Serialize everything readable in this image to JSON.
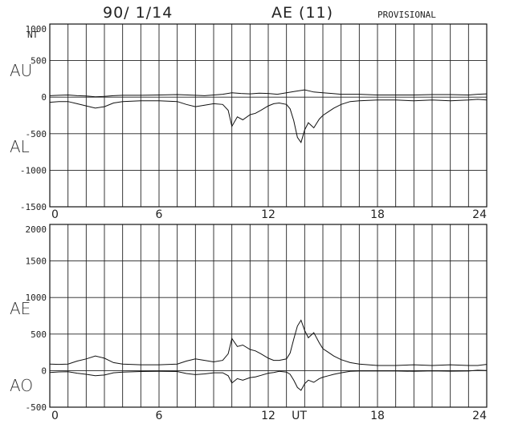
{
  "header": {
    "date": "90/ 1/14",
    "index": "AE (11)",
    "status": "PROVISIONAL"
  },
  "chart_data": [
    {
      "type": "line",
      "name": "upper-panel",
      "unit": "NT",
      "ylim": [
        -1500,
        1000
      ],
      "yticks": [
        1000,
        500,
        0,
        -500,
        -1000,
        -1500
      ],
      "ytick_labels": [
        "1000",
        "500",
        "0",
        "-500",
        "-1000",
        "-1500"
      ],
      "xlim": [
        0,
        24
      ],
      "xtick_labels": [
        {
          "x": 0,
          "label": "0"
        },
        {
          "x": 6,
          "label": "6"
        },
        {
          "x": 12,
          "label": "12"
        },
        {
          "x": 18,
          "label": "18"
        },
        {
          "x": 24,
          "label": "24"
        }
      ],
      "grid": "hourly",
      "series_labels": [
        "AU",
        "AL"
      ],
      "series": [
        {
          "name": "AU",
          "x": [
            0,
            0.5,
            1,
            1.5,
            2,
            2.5,
            3,
            3.5,
            4,
            5,
            6,
            7,
            8,
            8.5,
            9,
            9.5,
            10,
            10.5,
            11,
            11.5,
            12,
            12.5,
            13,
            13.5,
            14,
            14.5,
            15,
            15.5,
            16,
            17,
            18,
            19,
            20,
            21,
            22,
            23,
            23.5,
            24
          ],
          "y": [
            20,
            25,
            30,
            20,
            15,
            5,
            10,
            20,
            25,
            25,
            30,
            35,
            25,
            20,
            30,
            40,
            60,
            50,
            45,
            55,
            50,
            40,
            60,
            80,
            100,
            70,
            60,
            50,
            40,
            40,
            30,
            30,
            30,
            35,
            35,
            30,
            40,
            45
          ]
        },
        {
          "name": "AL",
          "x": [
            0,
            0.5,
            1,
            1.5,
            2,
            2.5,
            3,
            3.5,
            4,
            5,
            6,
            7,
            7.5,
            8,
            8.5,
            9,
            9.5,
            9.8,
            10,
            10.3,
            10.6,
            11,
            11.3,
            11.6,
            12,
            12.3,
            12.6,
            13,
            13.2,
            13.4,
            13.6,
            13.8,
            14,
            14.2,
            14.5,
            14.8,
            15,
            15.3,
            15.6,
            16,
            16.5,
            17,
            18,
            19,
            20,
            21,
            22,
            23,
            23.5,
            24
          ],
          "y": [
            -70,
            -60,
            -60,
            -90,
            -120,
            -150,
            -130,
            -80,
            -60,
            -50,
            -50,
            -60,
            -100,
            -130,
            -110,
            -90,
            -100,
            -180,
            -400,
            -270,
            -310,
            -240,
            -220,
            -180,
            -120,
            -90,
            -80,
            -100,
            -160,
            -320,
            -550,
            -620,
            -450,
            -350,
            -420,
            -300,
            -250,
            -200,
            -150,
            -100,
            -60,
            -50,
            -40,
            -40,
            -50,
            -40,
            -50,
            -40,
            -30,
            -40
          ]
        }
      ]
    },
    {
      "type": "line",
      "name": "lower-panel",
      "ylim": [
        -500,
        2000
      ],
      "yticks": [
        2000,
        1500,
        1000,
        500,
        0,
        -500
      ],
      "ytick_labels": [
        "2000",
        "1500",
        "1000",
        "500",
        "0",
        "-500"
      ],
      "xlim": [
        0,
        24
      ],
      "xtick_labels": [
        {
          "x": 0,
          "label": "0"
        },
        {
          "x": 6,
          "label": "6"
        },
        {
          "x": 12,
          "label": "12"
        },
        {
          "x": 13.7,
          "label": "UT"
        },
        {
          "x": 18,
          "label": "18"
        },
        {
          "x": 24,
          "label": "24"
        }
      ],
      "grid": "hourly",
      "series_labels": [
        "AE",
        "AO"
      ],
      "series": [
        {
          "name": "AE",
          "x": [
            0,
            0.5,
            1,
            1.5,
            2,
            2.5,
            3,
            3.5,
            4,
            5,
            6,
            7,
            7.5,
            8,
            8.5,
            9,
            9.5,
            9.8,
            10,
            10.3,
            10.6,
            11,
            11.3,
            11.6,
            12,
            12.3,
            12.6,
            13,
            13.2,
            13.4,
            13.6,
            13.8,
            14,
            14.2,
            14.5,
            14.8,
            15,
            15.3,
            15.6,
            16,
            16.5,
            17,
            18,
            19,
            20,
            21,
            22,
            23,
            23.5,
            24
          ],
          "y": [
            90,
            85,
            90,
            130,
            160,
            200,
            170,
            110,
            90,
            80,
            80,
            90,
            130,
            160,
            140,
            120,
            140,
            230,
            440,
            330,
            350,
            290,
            270,
            230,
            170,
            140,
            140,
            160,
            240,
            430,
            610,
            690,
            550,
            450,
            520,
            380,
            300,
            250,
            200,
            150,
            110,
            90,
            70,
            70,
            80,
            70,
            80,
            70,
            70,
            85
          ]
        },
        {
          "name": "AO",
          "x": [
            0,
            0.5,
            1,
            1.5,
            2,
            2.5,
            3,
            3.5,
            4,
            5,
            6,
            7,
            7.5,
            8,
            8.5,
            9,
            9.5,
            9.8,
            10,
            10.3,
            10.6,
            11,
            11.3,
            11.6,
            12,
            12.3,
            12.6,
            13,
            13.2,
            13.4,
            13.6,
            13.8,
            14,
            14.2,
            14.5,
            14.8,
            15,
            15.3,
            15.6,
            16,
            16.5,
            17,
            18,
            19,
            20,
            21,
            22,
            23,
            23.5,
            24
          ],
          "y": [
            -25,
            -18,
            -15,
            -35,
            -50,
            -70,
            -60,
            -30,
            -20,
            -12,
            -10,
            -12,
            -40,
            -55,
            -45,
            -30,
            -30,
            -70,
            -170,
            -110,
            -130,
            -95,
            -85,
            -65,
            -35,
            -25,
            -10,
            -20,
            -50,
            -130,
            -230,
            -270,
            -180,
            -130,
            -160,
            -110,
            -90,
            -70,
            -50,
            -30,
            -10,
            -5,
            -5,
            -5,
            -10,
            -3,
            -8,
            -5,
            5,
            2
          ]
        }
      ]
    }
  ]
}
